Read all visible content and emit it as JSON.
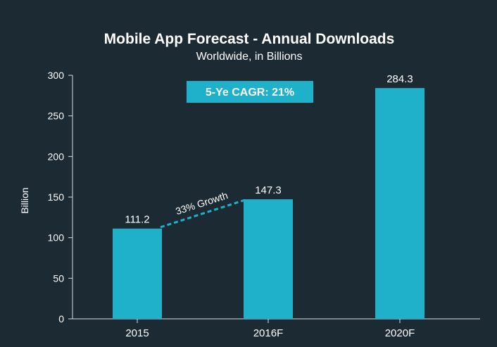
{
  "chart_data": {
    "type": "bar",
    "title": "Mobile App Forecast - Annual Downloads",
    "subtitle": "Worldwide, in Billions",
    "xlabel": "",
    "ylabel": "Billion",
    "categories": [
      "2015",
      "2016F",
      "2020F"
    ],
    "values": [
      111.2,
      147.3,
      284.3
    ],
    "value_labels": [
      "111.2",
      "147.3",
      "284.3"
    ],
    "ylim": [
      0,
      300
    ],
    "yticks": [
      0,
      50,
      100,
      150,
      200,
      250,
      300
    ],
    "grid": false,
    "legend": "none",
    "annotations": {
      "cagr": "5-Ye CAGR: 21%",
      "growth": "33% Growth"
    }
  },
  "colors": {
    "background": "#1b2a33",
    "bar": "#1fb0ca",
    "text": "#ffffff",
    "axis": "#d8dde0",
    "cagr_box": "#1fb0ca",
    "growth_line": "#1fb0ca"
  }
}
